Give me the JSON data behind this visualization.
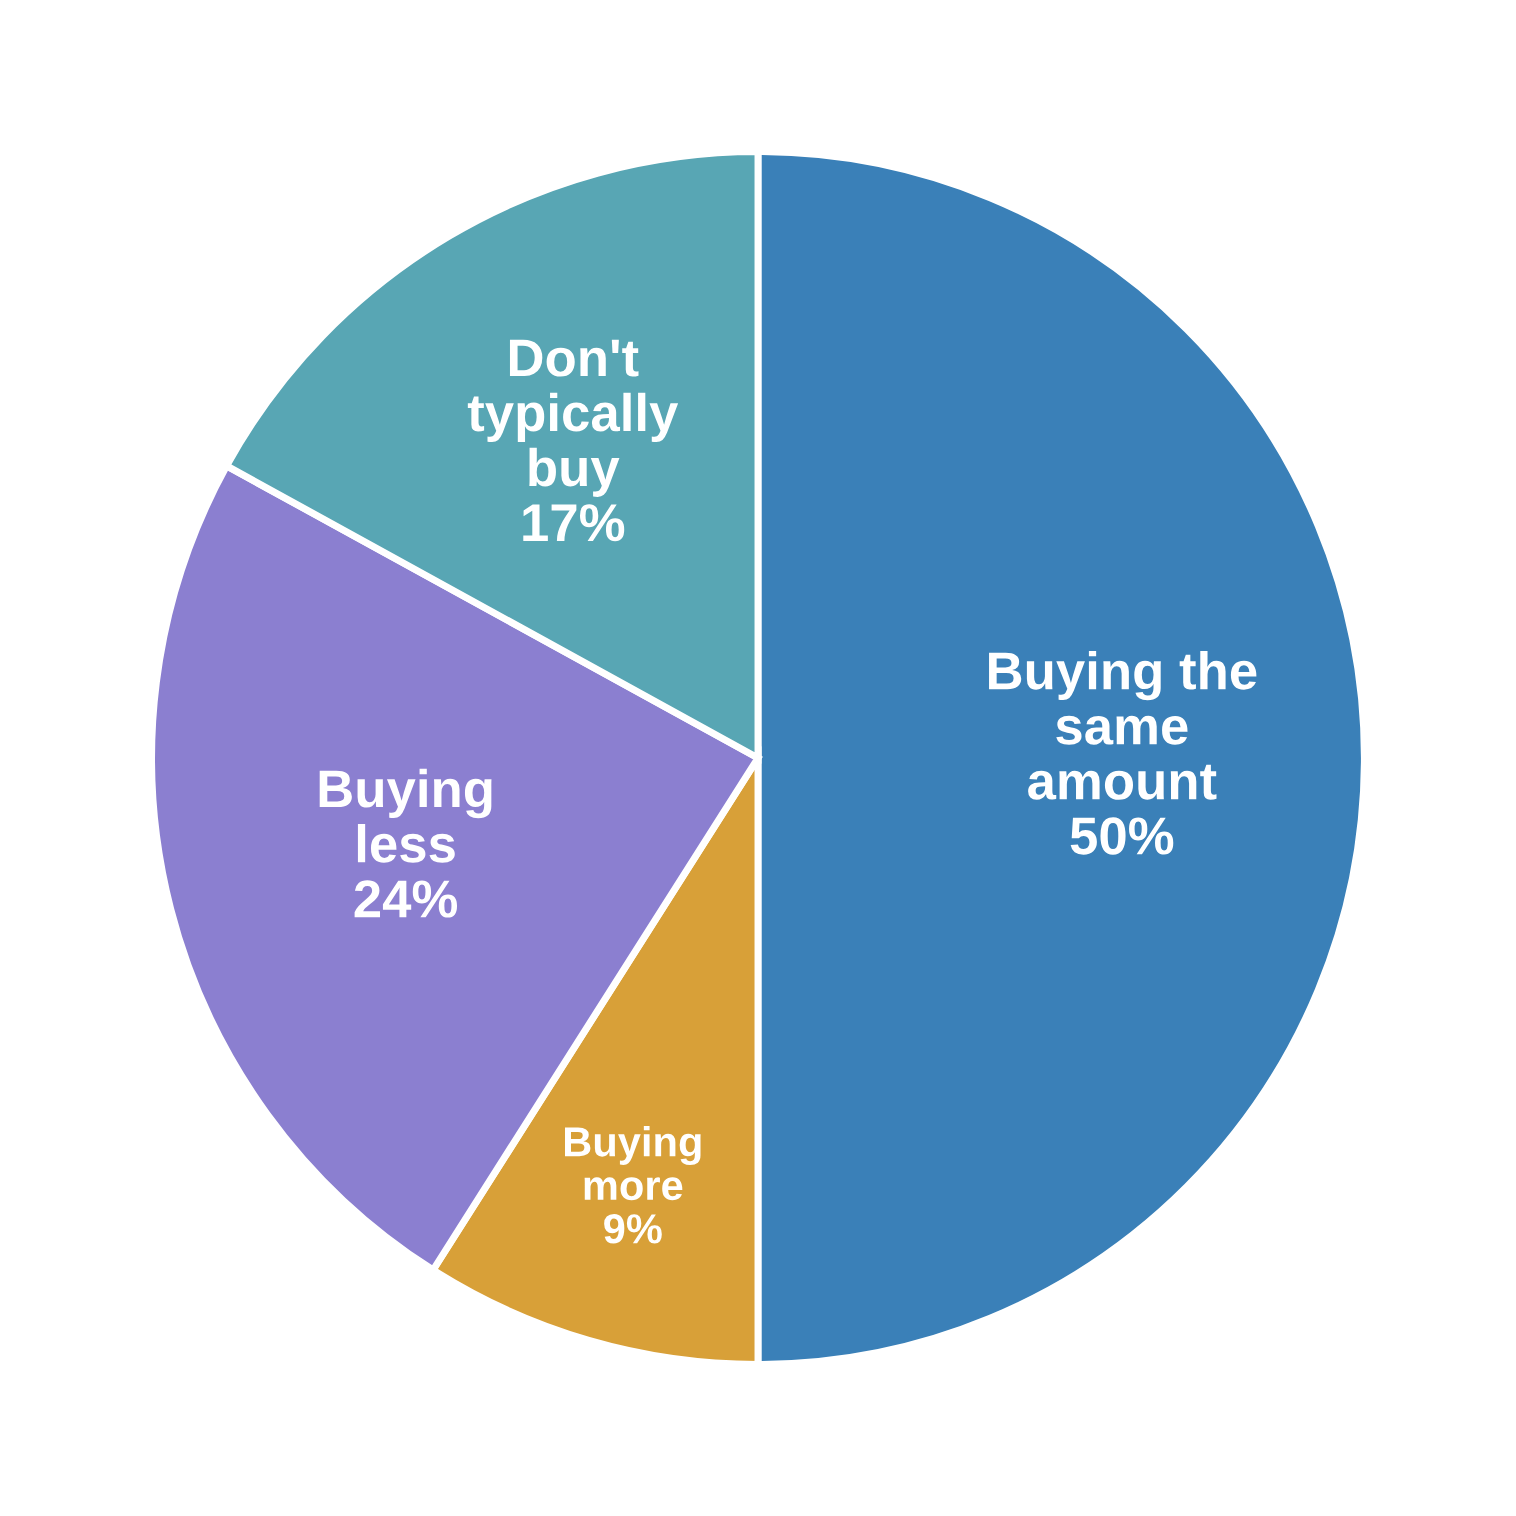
{
  "chart_data": {
    "type": "pie",
    "categories": [
      "Buying the same amount",
      "Buying more",
      "Buying less",
      "Don't typically buy"
    ],
    "values": [
      50,
      9,
      24,
      17
    ],
    "value_labels": [
      "50%",
      "9%",
      "24%",
      "17%"
    ],
    "colors": [
      "#3a80b8",
      "#d8a038",
      "#8b7fd0",
      "#58a6b4"
    ],
    "legend": false
  }
}
